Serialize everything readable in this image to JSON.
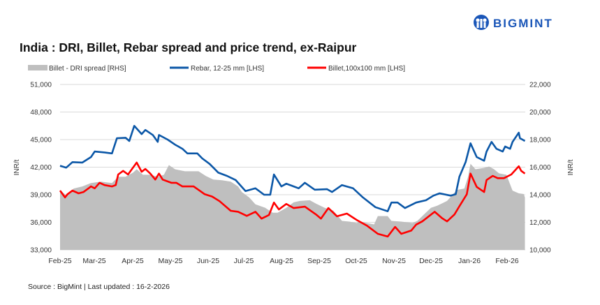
{
  "logo": {
    "text": "BIGMINT",
    "color": "#1a56b8"
  },
  "chart_data": {
    "type": "line",
    "title": "India : DRI, Billet, Rebar spread and price trend, ex-Raipur",
    "source": "Source : BigMint | Last updated : 16-2-2026",
    "ylabel_left": "INR/t",
    "ylabel_right": "INR/t",
    "ylim_left": [
      33000,
      51000
    ],
    "ylim_right": [
      10000,
      22000
    ],
    "yticks_left": [
      "51,000",
      "48,000",
      "45,000",
      "42,000",
      "39,000",
      "36,000",
      "33,000"
    ],
    "yticks_right": [
      "22,000",
      "20,000",
      "18,000",
      "16,000",
      "14,000",
      "12,000",
      "10,000"
    ],
    "xticks": [
      "Feb-25",
      "Mar-25",
      "Apr-25",
      "May-25",
      "Jun-25",
      "Jul-25",
      "Aug-25",
      "Sep-25",
      "Oct-25",
      "Nov-25",
      "Dec-25",
      "Jan-26",
      "Feb-26"
    ],
    "grid": true,
    "legend": "top",
    "series": [
      {
        "name": "Billet - DRI spread  [RHS]",
        "type": "area",
        "axis": "right",
        "color": "#bfbfbf",
        "points": [
          [
            "2025-02-01",
            14350
          ],
          [
            "2025-02-06",
            13950
          ],
          [
            "2025-02-12",
            14450
          ],
          [
            "2025-02-19",
            14600
          ],
          [
            "2025-02-26",
            14850
          ],
          [
            "2025-03-06",
            14950
          ],
          [
            "2025-03-15",
            14850
          ],
          [
            "2025-03-20",
            15300
          ],
          [
            "2025-03-26",
            15300
          ],
          [
            "2025-04-01",
            15600
          ],
          [
            "2025-04-04",
            15850
          ],
          [
            "2025-04-09",
            15450
          ],
          [
            "2025-04-15",
            15450
          ],
          [
            "2025-04-21",
            15300
          ],
          [
            "2025-04-26",
            15450
          ],
          [
            "2025-04-30",
            16150
          ],
          [
            "2025-05-05",
            15850
          ],
          [
            "2025-05-13",
            15700
          ],
          [
            "2025-05-24",
            15700
          ],
          [
            "2025-05-30",
            15350
          ],
          [
            "2025-06-05",
            15100
          ],
          [
            "2025-06-12",
            15050
          ],
          [
            "2025-06-19",
            14950
          ],
          [
            "2025-06-25",
            14600
          ],
          [
            "2025-06-28",
            14200
          ],
          [
            "2025-07-04",
            13800
          ],
          [
            "2025-07-09",
            13300
          ],
          [
            "2025-07-17",
            13050
          ],
          [
            "2025-07-23",
            12700
          ],
          [
            "2025-07-27",
            12700
          ],
          [
            "2025-08-03",
            13050
          ],
          [
            "2025-08-09",
            13450
          ],
          [
            "2025-08-14",
            13550
          ],
          [
            "2025-08-22",
            13600
          ],
          [
            "2025-08-27",
            13350
          ],
          [
            "2025-09-03",
            13050
          ],
          [
            "2025-09-10",
            12850
          ],
          [
            "2025-09-17",
            12100
          ],
          [
            "2025-09-23",
            12050
          ],
          [
            "2025-09-29",
            11950
          ],
          [
            "2025-10-01",
            12050
          ],
          [
            "2025-10-13",
            11850
          ],
          [
            "2025-10-16",
            12450
          ],
          [
            "2025-10-24",
            12450
          ],
          [
            "2025-10-27",
            12100
          ],
          [
            "2025-11-04",
            12050
          ],
          [
            "2025-11-13",
            11950
          ],
          [
            "2025-11-17",
            12100
          ],
          [
            "2025-11-21",
            12450
          ],
          [
            "2025-11-28",
            13050
          ],
          [
            "2025-12-03",
            13200
          ],
          [
            "2025-12-11",
            13550
          ],
          [
            "2025-12-19",
            14350
          ],
          [
            "2025-12-25",
            14450
          ],
          [
            "2025-12-28",
            15300
          ],
          [
            "2025-12-30",
            16250
          ],
          [
            "2026-01-03",
            15850
          ],
          [
            "2026-01-10",
            15950
          ],
          [
            "2026-01-14",
            16050
          ],
          [
            "2026-01-18",
            15850
          ],
          [
            "2026-01-22",
            15550
          ],
          [
            "2026-01-28",
            15450
          ],
          [
            "2026-02-02",
            14300
          ],
          [
            "2026-02-07",
            14100
          ],
          [
            "2026-02-11",
            14050
          ],
          [
            "2026-02-12",
            13800
          ]
        ]
      },
      {
        "name": "Rebar, 12-25 mm [LHS]",
        "type": "line",
        "axis": "left",
        "color": "#0b57a7",
        "points": [
          [
            "2025-02-01",
            42150
          ],
          [
            "2025-02-06",
            41950
          ],
          [
            "2025-02-11",
            42550
          ],
          [
            "2025-02-19",
            42500
          ],
          [
            "2025-02-26",
            43100
          ],
          [
            "2025-03-01",
            43700
          ],
          [
            "2025-03-09",
            43600
          ],
          [
            "2025-03-15",
            43500
          ],
          [
            "2025-03-19",
            45150
          ],
          [
            "2025-03-26",
            45200
          ],
          [
            "2025-03-29",
            44850
          ],
          [
            "2025-04-02",
            46500
          ],
          [
            "2025-04-08",
            45600
          ],
          [
            "2025-04-11",
            46050
          ],
          [
            "2025-04-17",
            45500
          ],
          [
            "2025-04-21",
            44750
          ],
          [
            "2025-04-22",
            45500
          ],
          [
            "2025-04-29",
            45000
          ],
          [
            "2025-05-05",
            44450
          ],
          [
            "2025-05-11",
            44000
          ],
          [
            "2025-05-15",
            43500
          ],
          [
            "2025-05-23",
            43500
          ],
          [
            "2025-05-27",
            42950
          ],
          [
            "2025-06-02",
            42350
          ],
          [
            "2025-06-09",
            41400
          ],
          [
            "2025-06-16",
            41050
          ],
          [
            "2025-06-23",
            40600
          ],
          [
            "2025-07-01",
            39400
          ],
          [
            "2025-07-09",
            39700
          ],
          [
            "2025-07-16",
            39000
          ],
          [
            "2025-07-21",
            39000
          ],
          [
            "2025-07-24",
            41200
          ],
          [
            "2025-07-30",
            39900
          ],
          [
            "2025-08-03",
            40200
          ],
          [
            "2025-08-09",
            39900
          ],
          [
            "2025-08-13",
            39700
          ],
          [
            "2025-08-18",
            40300
          ],
          [
            "2025-08-26",
            39550
          ],
          [
            "2025-09-05",
            39600
          ],
          [
            "2025-09-09",
            39300
          ],
          [
            "2025-09-17",
            40050
          ],
          [
            "2025-09-26",
            39700
          ],
          [
            "2025-10-04",
            38700
          ],
          [
            "2025-10-14",
            37650
          ],
          [
            "2025-10-24",
            37200
          ],
          [
            "2025-10-27",
            38150
          ],
          [
            "2025-11-01",
            38150
          ],
          [
            "2025-11-07",
            37550
          ],
          [
            "2025-11-16",
            38150
          ],
          [
            "2025-11-24",
            38400
          ],
          [
            "2025-11-30",
            38900
          ],
          [
            "2025-12-05",
            39150
          ],
          [
            "2025-12-14",
            38900
          ],
          [
            "2025-12-18",
            39050
          ],
          [
            "2025-12-21",
            40950
          ],
          [
            "2025-12-26",
            42550
          ],
          [
            "2025-12-30",
            44600
          ],
          [
            "2026-01-04",
            43100
          ],
          [
            "2026-01-10",
            42700
          ],
          [
            "2026-01-12",
            43700
          ],
          [
            "2026-01-16",
            44750
          ],
          [
            "2026-01-20",
            44000
          ],
          [
            "2026-01-25",
            43700
          ],
          [
            "2026-01-27",
            44250
          ],
          [
            "2026-01-31",
            44000
          ],
          [
            "2026-02-02",
            44750
          ],
          [
            "2026-02-07",
            45750
          ],
          [
            "2026-02-08",
            45150
          ],
          [
            "2026-02-12",
            44850
          ]
        ]
      },
      {
        "name": "Billet,100x100 mm [LHS]",
        "type": "line",
        "axis": "left",
        "color": "#ff0000",
        "points": [
          [
            "2025-02-01",
            39450
          ],
          [
            "2025-02-05",
            38700
          ],
          [
            "2025-02-07",
            39050
          ],
          [
            "2025-02-11",
            39450
          ],
          [
            "2025-02-16",
            39150
          ],
          [
            "2025-02-20",
            39300
          ],
          [
            "2025-02-26",
            39900
          ],
          [
            "2025-03-01",
            39700
          ],
          [
            "2025-03-05",
            40300
          ],
          [
            "2025-03-09",
            40050
          ],
          [
            "2025-03-15",
            39900
          ],
          [
            "2025-03-18",
            40050
          ],
          [
            "2025-03-20",
            41200
          ],
          [
            "2025-03-24",
            41600
          ],
          [
            "2025-03-28",
            41200
          ],
          [
            "2025-04-04",
            42500
          ],
          [
            "2025-04-08",
            41500
          ],
          [
            "2025-04-11",
            41800
          ],
          [
            "2025-04-15",
            41300
          ],
          [
            "2025-04-19",
            40650
          ],
          [
            "2025-04-22",
            41300
          ],
          [
            "2025-04-25",
            40650
          ],
          [
            "2025-05-02",
            40300
          ],
          [
            "2025-05-06",
            40300
          ],
          [
            "2025-05-11",
            39900
          ],
          [
            "2025-05-15",
            39900
          ],
          [
            "2025-05-20",
            39900
          ],
          [
            "2025-05-29",
            39050
          ],
          [
            "2025-06-04",
            38800
          ],
          [
            "2025-06-10",
            38300
          ],
          [
            "2025-06-19",
            37250
          ],
          [
            "2025-06-25",
            37150
          ],
          [
            "2025-07-02",
            36700
          ],
          [
            "2025-07-09",
            37150
          ],
          [
            "2025-07-14",
            36400
          ],
          [
            "2025-07-20",
            36800
          ],
          [
            "2025-07-24",
            38150
          ],
          [
            "2025-07-28",
            37400
          ],
          [
            "2025-08-03",
            38000
          ],
          [
            "2025-08-09",
            37550
          ],
          [
            "2025-08-18",
            37700
          ],
          [
            "2025-08-27",
            36850
          ],
          [
            "2025-08-31",
            36400
          ],
          [
            "2025-09-06",
            37550
          ],
          [
            "2025-09-13",
            36650
          ],
          [
            "2025-09-21",
            36950
          ],
          [
            "2025-09-29",
            36250
          ],
          [
            "2025-10-07",
            35650
          ],
          [
            "2025-10-16",
            34750
          ],
          [
            "2025-10-24",
            34450
          ],
          [
            "2025-10-30",
            35500
          ],
          [
            "2025-11-04",
            34750
          ],
          [
            "2025-11-12",
            35100
          ],
          [
            "2025-11-16",
            35750
          ],
          [
            "2025-11-21",
            36100
          ],
          [
            "2025-12-01",
            37150
          ],
          [
            "2025-12-07",
            36450
          ],
          [
            "2025-12-11",
            36100
          ],
          [
            "2025-12-17",
            36850
          ],
          [
            "2025-12-21",
            37750
          ],
          [
            "2025-12-27",
            39050
          ],
          [
            "2025-12-30",
            41300
          ],
          [
            "2026-01-04",
            39850
          ],
          [
            "2026-01-10",
            39300
          ],
          [
            "2026-01-12",
            40600
          ],
          [
            "2026-01-17",
            41050
          ],
          [
            "2026-01-21",
            40800
          ],
          [
            "2026-01-26",
            40800
          ],
          [
            "2026-02-01",
            41200
          ],
          [
            "2026-02-07",
            42100
          ],
          [
            "2026-02-09",
            41600
          ],
          [
            "2026-02-12",
            41300
          ]
        ]
      }
    ]
  }
}
